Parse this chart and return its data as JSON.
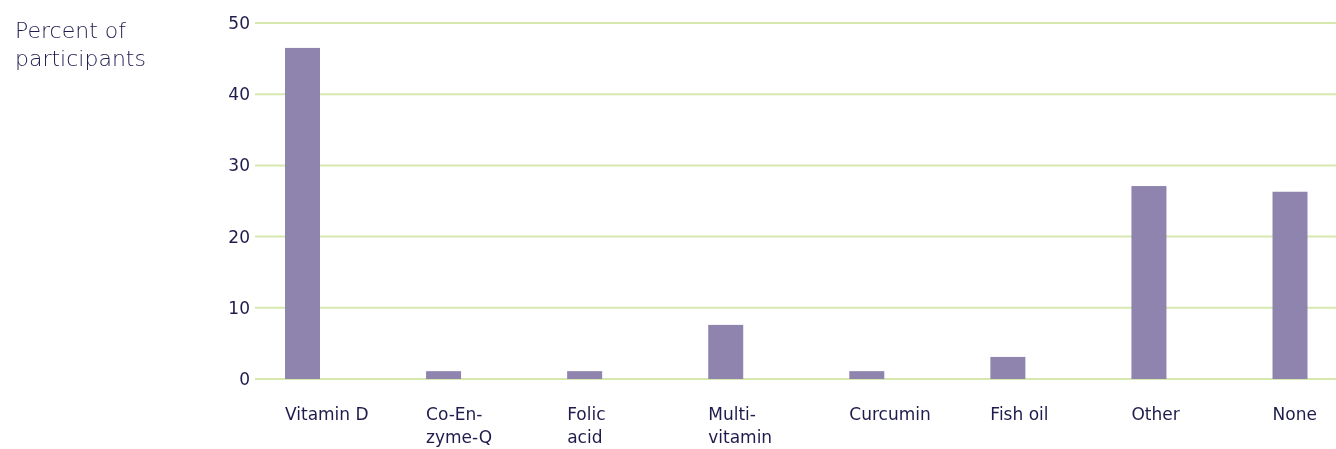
{
  "chart_data": {
    "type": "bar",
    "ylabel": "Percent of\nparticipants",
    "categories": [
      "Vitamin D",
      "Co-En-\nzyme-Q",
      "Folic\nacid",
      "Multi-\nvitamin",
      "Curcumin",
      "Fish oil",
      "Other",
      "None"
    ],
    "values": [
      46.5,
      1.1,
      1.1,
      7.6,
      1.1,
      3.1,
      27.1,
      26.3
    ],
    "color": "#8e84ae",
    "ylim": [
      0,
      50
    ],
    "yticks": [
      0,
      10,
      20,
      30,
      40,
      50
    ],
    "grid": "y"
  }
}
